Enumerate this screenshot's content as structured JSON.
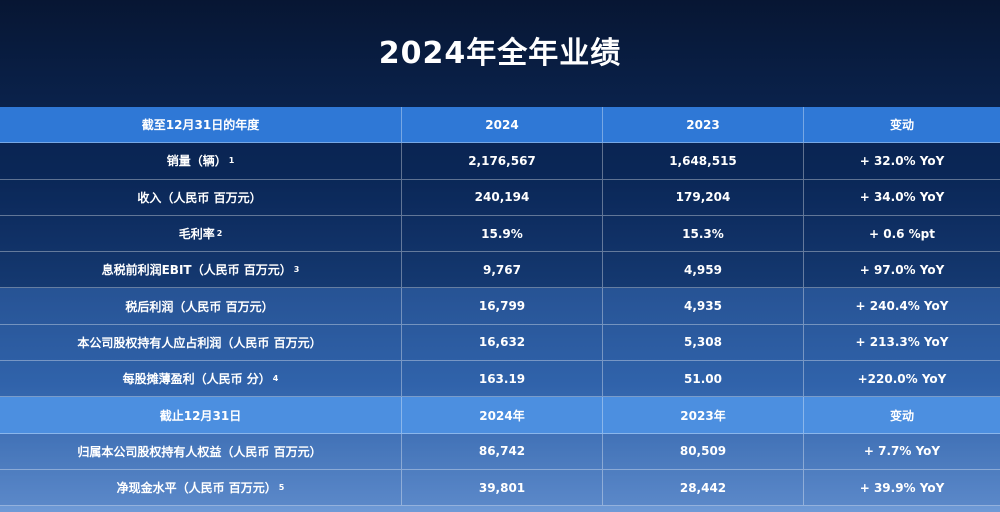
{
  "title": "2024年全年业绩",
  "table1": {
    "headers": [
      "截至12月31日的年度",
      "2024",
      "2023",
      "变动"
    ],
    "rows": [
      {
        "label": "销量（辆）",
        "sup": "1",
        "v2024": "2,176,567",
        "v2023": "1,648,515",
        "change": "+ 32.0% YoY"
      },
      {
        "label": "收入（人民币 百万元）",
        "sup": "",
        "v2024": "240,194",
        "v2023": "179,204",
        "change": "+ 34.0% YoY"
      },
      {
        "label": "毛利率",
        "sup": "2",
        "v2024": "15.9%",
        "v2023": "15.3%",
        "change": "+ 0.6 %pt"
      },
      {
        "label": "息税前利润EBIT（人民币 百万元）",
        "sup": "3",
        "v2024": "9,767",
        "v2023": "4,959",
        "change": "+ 97.0% YoY"
      },
      {
        "label": "税后利润（人民币 百万元）",
        "sup": "",
        "v2024": "16,799",
        "v2023": "4,935",
        "change": "+ 240.4% YoY"
      },
      {
        "label": "本公司股权持有人应占利润（人民币 百万元）",
        "sup": "",
        "v2024": "16,632",
        "v2023": "5,308",
        "change": "+ 213.3% YoY"
      },
      {
        "label": "每股摊薄盈利（人民币 分）",
        "sup": "4",
        "v2024": "163.19",
        "v2023": "51.00",
        "change": "+220.0% YoY"
      }
    ]
  },
  "table2": {
    "headers": [
      "截止12月31日",
      "2024年",
      "2023年",
      "变动"
    ],
    "rows": [
      {
        "label": "归属本公司股权持有人权益（人民币 百万元）",
        "sup": "",
        "v2024": "86,742",
        "v2023": "80,509",
        "change": "+ 7.7% YoY"
      },
      {
        "label": "净现金水平（人民币 百万元）",
        "sup": "5",
        "v2024": "39,801",
        "v2023": "28,442",
        "change": "+ 39.9% YoY"
      }
    ]
  }
}
